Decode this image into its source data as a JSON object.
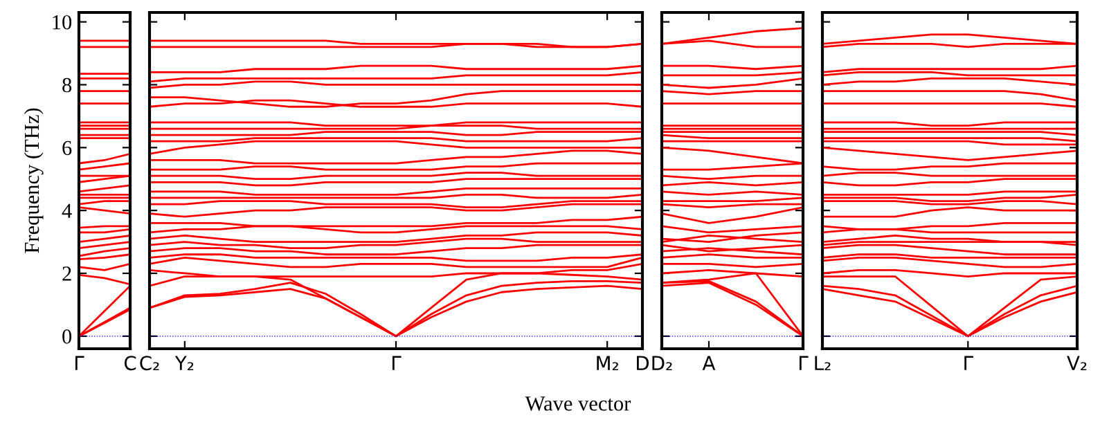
{
  "chart_data": [
    {
      "type": "line",
      "ylabel": "Frequency (THz)",
      "color": "#ff0000",
      "grid": false,
      "ylim": [
        -0.4,
        10.3
      ],
      "yticks": [
        0,
        2,
        4,
        6,
        8,
        10
      ],
      "categories": [
        "Γ",
        null,
        "C"
      ],
      "ref_lines": [
        {
          "axis": "y",
          "value": 0,
          "color": "#0000ff",
          "line_style": "dotted"
        }
      ],
      "series": [
        {
          "values": [
            0,
            0.45,
            0.9
          ]
        },
        {
          "values": [
            0,
            0.42,
            0.85
          ]
        },
        {
          "values": [
            0,
            0.8,
            1.6
          ]
        },
        {
          "values": [
            1.95,
            1.85,
            1.65
          ]
        },
        {
          "values": [
            2.2,
            2.1,
            2.3
          ]
        },
        {
          "values": [
            2.45,
            2.5,
            2.6
          ]
        },
        {
          "values": [
            2.55,
            2.7,
            2.8
          ]
        },
        {
          "values": [
            2.8,
            2.9,
            3.0
          ]
        },
        {
          "values": [
            3.0,
            3.1,
            3.2
          ]
        },
        {
          "values": [
            3.3,
            3.3,
            3.4
          ]
        },
        {
          "values": [
            3.45,
            3.5,
            3.5
          ]
        },
        {
          "values": [
            4.1,
            4.0,
            3.9
          ]
        },
        {
          "values": [
            4.2,
            4.3,
            4.3
          ]
        },
        {
          "values": [
            4.4,
            4.4,
            4.4
          ]
        },
        {
          "values": [
            4.5,
            4.5,
            4.5
          ]
        },
        {
          "values": [
            4.6,
            4.7,
            4.8
          ]
        },
        {
          "values": [
            4.9,
            5.0,
            5.1
          ]
        },
        {
          "values": [
            5.1,
            5.1,
            5.1
          ]
        },
        {
          "values": [
            5.3,
            5.4,
            5.5
          ]
        },
        {
          "values": [
            5.5,
            5.6,
            5.8
          ]
        },
        {
          "values": [
            6.3,
            6.3,
            6.3
          ]
        },
        {
          "values": [
            6.4,
            6.4,
            6.4
          ]
        },
        {
          "values": [
            6.6,
            6.6,
            6.6
          ]
        },
        {
          "values": [
            6.7,
            6.7,
            6.7
          ]
        },
        {
          "values": [
            6.8,
            6.8,
            6.8
          ]
        },
        {
          "values": [
            7.4,
            7.4,
            7.4
          ]
        },
        {
          "values": [
            7.8,
            7.8,
            7.8
          ]
        },
        {
          "values": [
            8.2,
            8.2,
            8.2
          ]
        },
        {
          "values": [
            8.35,
            8.35,
            8.35
          ]
        },
        {
          "values": [
            9.2,
            9.2,
            9.2
          ]
        },
        {
          "values": [
            9.4,
            9.4,
            9.4
          ]
        }
      ]
    },
    {
      "type": "line",
      "xlabel": "Wave vector",
      "color": "#ff0000",
      "grid": false,
      "tick_labels": "x",
      "ylim": [
        -0.4,
        10.3
      ],
      "yticks": [
        0,
        2,
        4,
        6,
        8,
        10
      ],
      "categories": [
        "C₂",
        "Y₂",
        null,
        null,
        null,
        null,
        null,
        "Γ",
        null,
        null,
        null,
        null,
        null,
        "M₂",
        "D"
      ],
      "ref_lines": [
        {
          "axis": "y",
          "value": 0,
          "color": "#0000ff",
          "line_style": "dotted"
        }
      ],
      "series": [
        {
          "values": [
            0.9,
            1.25,
            1.3,
            1.4,
            1.5,
            1.2,
            0.6,
            0,
            0.6,
            1.1,
            1.4,
            1.5,
            1.55,
            1.6,
            1.5
          ]
        },
        {
          "values": [
            0.9,
            1.3,
            1.35,
            1.5,
            1.7,
            1.35,
            0.7,
            0,
            0.7,
            1.3,
            1.6,
            1.7,
            1.75,
            1.75,
            1.7
          ]
        },
        {
          "values": [
            1.6,
            1.9,
            1.9,
            1.9,
            1.8,
            1.2,
            0.6,
            0,
            0.9,
            1.8,
            2.0,
            2.0,
            1.95,
            1.9,
            1.8
          ]
        },
        {
          "values": [
            2.1,
            2.0,
            1.9,
            1.9,
            1.9,
            1.9,
            1.9,
            1.9,
            1.9,
            2.0,
            2.0,
            2.0,
            2.1,
            2.1,
            2.3
          ]
        },
        {
          "values": [
            2.3,
            2.5,
            2.4,
            2.3,
            2.2,
            2.2,
            2.3,
            2.3,
            2.3,
            2.2,
            2.2,
            2.2,
            2.2,
            2.2,
            2.5
          ]
        },
        {
          "values": [
            2.5,
            2.6,
            2.6,
            2.5,
            2.5,
            2.5,
            2.5,
            2.5,
            2.5,
            2.4,
            2.4,
            2.4,
            2.5,
            2.5,
            2.6
          ]
        },
        {
          "values": [
            2.7,
            2.8,
            2.8,
            2.7,
            2.7,
            2.6,
            2.6,
            2.6,
            2.7,
            2.8,
            2.8,
            2.9,
            2.9,
            2.9,
            2.9
          ]
        },
        {
          "values": [
            2.9,
            3.0,
            2.9,
            2.9,
            2.8,
            2.8,
            2.9,
            2.9,
            3.0,
            3.1,
            3.1,
            3.0,
            3.0,
            3.0,
            3.0
          ]
        },
        {
          "values": [
            3.1,
            3.2,
            3.1,
            3.0,
            3.0,
            3.0,
            3.0,
            3.0,
            3.1,
            3.2,
            3.2,
            3.3,
            3.3,
            3.3,
            3.2
          ]
        },
        {
          "values": [
            3.3,
            3.4,
            3.4,
            3.5,
            3.5,
            3.4,
            3.3,
            3.3,
            3.4,
            3.5,
            3.5,
            3.5,
            3.5,
            3.5,
            3.4
          ]
        },
        {
          "values": [
            3.6,
            3.6,
            3.6,
            3.5,
            3.5,
            3.5,
            3.5,
            3.5,
            3.5,
            3.6,
            3.6,
            3.6,
            3.7,
            3.7,
            3.8
          ]
        },
        {
          "values": [
            3.9,
            3.8,
            3.9,
            4.0,
            4.0,
            4.1,
            4.1,
            4.1,
            4.1,
            4.0,
            4.0,
            4.1,
            4.2,
            4.2,
            4.2
          ]
        },
        {
          "values": [
            4.2,
            4.2,
            4.3,
            4.3,
            4.3,
            4.2,
            4.2,
            4.2,
            4.2,
            4.1,
            4.1,
            4.2,
            4.3,
            4.3,
            4.3
          ]
        },
        {
          "values": [
            4.4,
            4.4,
            4.4,
            4.4,
            4.4,
            4.4,
            4.4,
            4.4,
            4.4,
            4.5,
            4.5,
            4.4,
            4.4,
            4.4,
            4.5
          ]
        },
        {
          "values": [
            4.6,
            4.6,
            4.6,
            4.5,
            4.5,
            4.5,
            4.5,
            4.5,
            4.6,
            4.7,
            4.7,
            4.7,
            4.7,
            4.7,
            4.7
          ]
        },
        {
          "values": [
            4.9,
            4.9,
            4.9,
            4.8,
            4.8,
            4.9,
            4.9,
            4.9,
            4.9,
            5.0,
            5.0,
            5.0,
            5.0,
            5.0,
            5.0
          ]
        },
        {
          "values": [
            5.1,
            5.1,
            5.1,
            5.0,
            5.0,
            5.1,
            5.1,
            5.1,
            5.1,
            5.2,
            5.2,
            5.1,
            5.1,
            5.1,
            5.1
          ]
        },
        {
          "values": [
            5.3,
            5.3,
            5.3,
            5.4,
            5.4,
            5.3,
            5.3,
            5.3,
            5.3,
            5.4,
            5.4,
            5.5,
            5.5,
            5.5,
            5.5
          ]
        },
        {
          "values": [
            5.6,
            5.6,
            5.6,
            5.5,
            5.5,
            5.5,
            5.5,
            5.5,
            5.6,
            5.7,
            5.7,
            5.8,
            5.9,
            5.9,
            5.8
          ]
        },
        {
          "values": [
            5.8,
            6.0,
            6.1,
            6.2,
            6.2,
            6.2,
            6.2,
            6.2,
            6.1,
            6.0,
            6.0,
            6.0,
            6.0,
            6.0,
            6.0
          ]
        },
        {
          "values": [
            6.2,
            6.2,
            6.2,
            6.3,
            6.3,
            6.3,
            6.3,
            6.3,
            6.3,
            6.2,
            6.2,
            6.2,
            6.2,
            6.2,
            6.3
          ]
        },
        {
          "values": [
            6.4,
            6.4,
            6.4,
            6.4,
            6.4,
            6.5,
            6.5,
            6.5,
            6.5,
            6.4,
            6.4,
            6.5,
            6.5,
            6.5,
            6.5
          ]
        },
        {
          "values": [
            6.6,
            6.6,
            6.6,
            6.6,
            6.6,
            6.6,
            6.6,
            6.6,
            6.7,
            6.7,
            6.7,
            6.6,
            6.6,
            6.6,
            6.6
          ]
        },
        {
          "values": [
            6.8,
            6.8,
            6.8,
            6.8,
            6.8,
            6.7,
            6.7,
            6.7,
            6.7,
            6.8,
            6.8,
            6.8,
            6.8,
            6.8,
            6.8
          ]
        },
        {
          "values": [
            7.3,
            7.4,
            7.4,
            7.5,
            7.5,
            7.4,
            7.3,
            7.3,
            7.3,
            7.4,
            7.4,
            7.4,
            7.4,
            7.4,
            7.3
          ]
        },
        {
          "values": [
            7.6,
            7.6,
            7.5,
            7.4,
            7.3,
            7.3,
            7.4,
            7.4,
            7.5,
            7.7,
            7.8,
            7.8,
            7.8,
            7.8,
            7.8
          ]
        },
        {
          "values": [
            7.9,
            8.0,
            8.0,
            8.1,
            8.1,
            8.0,
            8.0,
            8.0,
            8.0,
            8.0,
            8.0,
            8.0,
            8.0,
            8.0,
            8.0
          ]
        },
        {
          "values": [
            8.1,
            8.2,
            8.2,
            8.2,
            8.2,
            8.2,
            8.2,
            8.2,
            8.2,
            8.3,
            8.3,
            8.3,
            8.3,
            8.3,
            8.4
          ]
        },
        {
          "values": [
            8.4,
            8.4,
            8.4,
            8.5,
            8.5,
            8.5,
            8.6,
            8.6,
            8.6,
            8.5,
            8.5,
            8.5,
            8.5,
            8.5,
            8.6
          ]
        },
        {
          "values": [
            9.2,
            9.2,
            9.2,
            9.2,
            9.2,
            9.2,
            9.2,
            9.2,
            9.2,
            9.3,
            9.3,
            9.3,
            9.2,
            9.2,
            9.3
          ]
        },
        {
          "values": [
            9.4,
            9.4,
            9.4,
            9.4,
            9.4,
            9.4,
            9.3,
            9.3,
            9.3,
            9.3,
            9.3,
            9.2,
            9.2,
            9.2,
            9.3
          ]
        }
      ]
    },
    {
      "type": "line",
      "color": "#ff0000",
      "grid": false,
      "tick_labels": "x",
      "ylim": [
        -0.4,
        10.3
      ],
      "yticks": [
        0,
        2,
        4,
        6,
        8,
        10
      ],
      "categories": [
        "D₂",
        "A",
        null,
        "Γ"
      ],
      "ref_lines": [
        {
          "axis": "y",
          "value": 0,
          "color": "#0000ff",
          "line_style": "dotted"
        }
      ],
      "series": [
        {
          "values": [
            1.6,
            1.7,
            1.0,
            0
          ]
        },
        {
          "values": [
            1.7,
            1.75,
            1.1,
            0
          ]
        },
        {
          "values": [
            1.7,
            1.8,
            2.0,
            0
          ]
        },
        {
          "values": [
            2.0,
            2.1,
            2.0,
            1.9
          ]
        },
        {
          "values": [
            2.3,
            2.3,
            2.2,
            2.3
          ]
        },
        {
          "values": [
            2.5,
            2.6,
            2.5,
            2.5
          ]
        },
        {
          "values": [
            2.7,
            2.8,
            2.7,
            2.6
          ]
        },
        {
          "values": [
            2.9,
            2.7,
            2.8,
            2.9
          ]
        },
        {
          "values": [
            3.0,
            3.2,
            3.1,
            3.0
          ]
        },
        {
          "values": [
            3.1,
            3.0,
            3.2,
            3.3
          ]
        },
        {
          "values": [
            3.5,
            3.3,
            3.4,
            3.5
          ]
        },
        {
          "values": [
            3.9,
            3.6,
            3.8,
            4.1
          ]
        },
        {
          "values": [
            4.2,
            4.1,
            4.2,
            4.2
          ]
        },
        {
          "values": [
            4.3,
            4.3,
            4.3,
            4.4
          ]
        },
        {
          "values": [
            4.6,
            4.5,
            4.6,
            4.5
          ]
        },
        {
          "values": [
            4.8,
            4.9,
            4.8,
            4.9
          ]
        },
        {
          "values": [
            5.1,
            5.0,
            5.1,
            5.1
          ]
        },
        {
          "values": [
            5.3,
            5.3,
            5.4,
            5.5
          ]
        },
        {
          "values": [
            6.0,
            5.9,
            5.7,
            5.5
          ]
        },
        {
          "values": [
            6.2,
            6.2,
            6.2,
            6.2
          ]
        },
        {
          "values": [
            6.4,
            6.3,
            6.3,
            6.3
          ]
        },
        {
          "values": [
            6.5,
            6.5,
            6.5,
            6.5
          ]
        },
        {
          "values": [
            6.6,
            6.6,
            6.6,
            6.6
          ]
        },
        {
          "values": [
            6.7,
            6.7,
            6.7,
            6.7
          ]
        },
        {
          "values": [
            7.4,
            7.4,
            7.4,
            7.4
          ]
        },
        {
          "values": [
            7.8,
            7.7,
            7.8,
            7.8
          ]
        },
        {
          "values": [
            8.0,
            7.9,
            8.0,
            8.2
          ]
        },
        {
          "values": [
            8.3,
            8.3,
            8.3,
            8.4
          ]
        },
        {
          "values": [
            8.6,
            8.6,
            8.5,
            8.6
          ]
        },
        {
          "values": [
            9.3,
            9.4,
            9.2,
            9.2
          ]
        },
        {
          "values": [
            9.3,
            9.5,
            9.7,
            9.8
          ]
        }
      ]
    },
    {
      "type": "line",
      "color": "#ff0000",
      "grid": false,
      "tick_labels": "x",
      "ylim": [
        -0.4,
        10.3
      ],
      "yticks": [
        0,
        2,
        4,
        6,
        8,
        10
      ],
      "categories": [
        "L₂",
        null,
        null,
        null,
        "Γ",
        null,
        null,
        "V₂"
      ],
      "ref_lines": [
        {
          "axis": "y",
          "value": 0,
          "color": "#0000ff",
          "line_style": "dotted"
        }
      ],
      "series": [
        {
          "values": [
            1.5,
            1.3,
            1.1,
            0.55,
            0,
            0.6,
            1.1,
            1.4
          ]
        },
        {
          "values": [
            1.6,
            1.5,
            1.3,
            0.65,
            0,
            0.7,
            1.3,
            1.6
          ]
        },
        {
          "values": [
            1.9,
            1.9,
            1.9,
            0.95,
            0,
            0.9,
            1.8,
            1.9
          ]
        },
        {
          "values": [
            2.0,
            2.1,
            2.1,
            2.0,
            1.9,
            2.0,
            2.0,
            2.0
          ]
        },
        {
          "values": [
            2.4,
            2.5,
            2.5,
            2.4,
            2.3,
            2.2,
            2.2,
            2.3
          ]
        },
        {
          "values": [
            2.5,
            2.6,
            2.6,
            2.5,
            2.5,
            2.5,
            2.5,
            2.5
          ]
        },
        {
          "values": [
            2.8,
            2.9,
            2.9,
            2.8,
            2.7,
            2.6,
            2.6,
            2.6
          ]
        },
        {
          "values": [
            2.9,
            3.0,
            3.0,
            3.0,
            3.0,
            3.0,
            3.0,
            3.0
          ]
        },
        {
          "values": [
            3.0,
            3.1,
            3.2,
            3.1,
            3.1,
            3.0,
            3.0,
            2.9
          ]
        },
        {
          "values": [
            3.3,
            3.4,
            3.4,
            3.3,
            3.3,
            3.3,
            3.3,
            3.3
          ]
        },
        {
          "values": [
            3.5,
            3.4,
            3.4,
            3.5,
            3.5,
            3.6,
            3.6,
            3.6
          ]
        },
        {
          "values": [
            3.8,
            3.8,
            3.8,
            4.0,
            4.1,
            4.0,
            4.0,
            4.0
          ]
        },
        {
          "values": [
            4.3,
            4.3,
            4.3,
            4.2,
            4.2,
            4.3,
            4.3,
            4.2
          ]
        },
        {
          "values": [
            4.4,
            4.4,
            4.4,
            4.3,
            4.3,
            4.4,
            4.4,
            4.5
          ]
        },
        {
          "values": [
            4.5,
            4.5,
            4.5,
            4.5,
            4.5,
            4.6,
            4.6,
            4.6
          ]
        },
        {
          "values": [
            4.9,
            4.8,
            4.8,
            4.9,
            4.9,
            5.0,
            5.0,
            5.0
          ]
        },
        {
          "values": [
            5.1,
            5.2,
            5.2,
            5.1,
            5.1,
            5.1,
            5.1,
            5.1
          ]
        },
        {
          "values": [
            5.4,
            5.3,
            5.3,
            5.4,
            5.4,
            5.5,
            5.5,
            5.5
          ]
        },
        {
          "values": [
            6.0,
            5.9,
            5.8,
            5.7,
            5.6,
            5.7,
            5.8,
            5.9
          ]
        },
        {
          "values": [
            6.2,
            6.2,
            6.2,
            6.2,
            6.2,
            6.1,
            6.1,
            6.1
          ]
        },
        {
          "values": [
            6.3,
            6.3,
            6.3,
            6.3,
            6.3,
            6.3,
            6.3,
            6.2
          ]
        },
        {
          "values": [
            6.5,
            6.5,
            6.5,
            6.5,
            6.5,
            6.5,
            6.5,
            6.4
          ]
        },
        {
          "values": [
            6.6,
            6.6,
            6.6,
            6.6,
            6.6,
            6.6,
            6.6,
            6.6
          ]
        },
        {
          "values": [
            6.8,
            6.8,
            6.8,
            6.7,
            6.7,
            6.8,
            6.8,
            6.8
          ]
        },
        {
          "values": [
            7.4,
            7.4,
            7.4,
            7.4,
            7.4,
            7.4,
            7.4,
            7.3
          ]
        },
        {
          "values": [
            7.8,
            7.8,
            7.8,
            7.8,
            7.8,
            7.8,
            7.7,
            7.5
          ]
        },
        {
          "values": [
            8.0,
            8.1,
            8.1,
            8.2,
            8.2,
            8.2,
            8.1,
            8.0
          ]
        },
        {
          "values": [
            8.3,
            8.4,
            8.4,
            8.4,
            8.3,
            8.3,
            8.3,
            8.3
          ]
        },
        {
          "values": [
            8.4,
            8.5,
            8.5,
            8.5,
            8.5,
            8.5,
            8.5,
            8.6
          ]
        },
        {
          "values": [
            9.2,
            9.3,
            9.3,
            9.3,
            9.2,
            9.3,
            9.3,
            9.3
          ]
        },
        {
          "values": [
            9.3,
            9.4,
            9.5,
            9.6,
            9.6,
            9.5,
            9.4,
            9.3
          ]
        }
      ]
    }
  ]
}
